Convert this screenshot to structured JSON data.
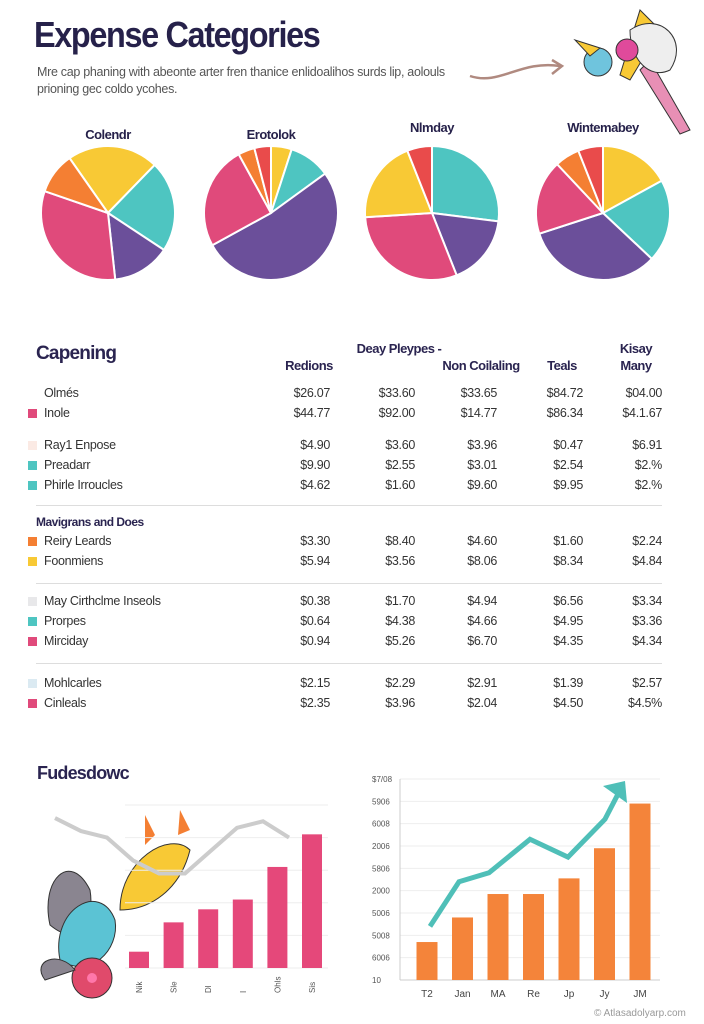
{
  "header": {
    "title": "Expense Categories",
    "subtitle": "Mre cap phaning with abeonte arter fren thanice enlidoalihos surds lip, aolouls prioning gec coldo ycohes."
  },
  "colors": {
    "pink": "#e04a7b",
    "purple": "#6b4f9a",
    "teal": "#4ec5c1",
    "yellow": "#f8c935",
    "orange": "#f47f33",
    "red": "#e94b4b",
    "navy": "#26214a",
    "bar_pink": "#e5487a",
    "bar_orange": "#f4843a",
    "line_teal": "#4fbfb8"
  },
  "chart_data": [
    {
      "type": "pie",
      "title": "Colendr",
      "slices": [
        {
          "color": "yellow",
          "value": 22
        },
        {
          "color": "teal",
          "value": 22
        },
        {
          "color": "purple",
          "value": 14
        },
        {
          "color": "pink",
          "value": 32
        },
        {
          "color": "orange",
          "value": 10
        }
      ]
    },
    {
      "type": "pie",
      "title": "Erotolok",
      "slices": [
        {
          "color": "yellow",
          "value": 5
        },
        {
          "color": "teal",
          "value": 10
        },
        {
          "color": "purple",
          "value": 52
        },
        {
          "color": "pink",
          "value": 25
        },
        {
          "color": "orange",
          "value": 4
        },
        {
          "color": "red",
          "value": 4
        }
      ]
    },
    {
      "type": "pie",
      "title": "Nlmday",
      "slices": [
        {
          "color": "teal",
          "value": 27
        },
        {
          "color": "purple",
          "value": 17
        },
        {
          "color": "pink",
          "value": 30
        },
        {
          "color": "yellow",
          "value": 20
        },
        {
          "color": "red",
          "value": 6
        }
      ]
    },
    {
      "type": "pie",
      "title": "Wintemabey",
      "slices": [
        {
          "color": "yellow",
          "value": 17
        },
        {
          "color": "teal",
          "value": 20
        },
        {
          "color": "purple",
          "value": 33
        },
        {
          "color": "pink",
          "value": 18
        },
        {
          "color": "orange",
          "value": 6
        },
        {
          "color": "red",
          "value": 6
        }
      ]
    },
    {
      "type": "table",
      "title": "Capening",
      "columns": [
        "Redions",
        "Deay Pleypes -",
        "Non Coilaling",
        "Teals",
        "Kisay Many"
      ],
      "groups": [
        {
          "rows": [
            {
              "label": "Olmés",
              "swatch": null,
              "values": [
                "$26.07",
                "$33.60",
                "$33.65",
                "$84.72",
                "$04.00"
              ]
            },
            {
              "label": "Inole",
              "swatch": "#e04a7b",
              "values": [
                "$44.77",
                "$92.00",
                "$14.77",
                "$86.34",
                "$4.1.67"
              ]
            },
            {
              "label": "Ray1 Enpose",
              "swatch": "#fbeae4",
              "values": [
                "$4.90",
                "$3.60",
                "$3.96",
                "$0.47",
                "$6.91"
              ]
            },
            {
              "label": "Preadarr",
              "swatch": "#4ec5c1",
              "values": [
                "$9.90",
                "$2.55",
                "$3.01",
                "$2.54",
                "$2.%"
              ]
            },
            {
              "label": "Phirle Irroucles",
              "swatch": "#4ec5c1",
              "values": [
                "$4.62",
                "$1.60",
                "$9.60",
                "$9.95",
                "$2.%"
              ]
            }
          ]
        },
        {
          "heading": "Mavigrans and Does",
          "rows": [
            {
              "label": "Reiry Leards",
              "swatch": "#f47f33",
              "values": [
                "$3.30",
                "$8.40",
                "$4.60",
                "$1.60",
                "$2.24"
              ]
            },
            {
              "label": "Foonmiens",
              "swatch": "#f8c935",
              "values": [
                "$5.94",
                "$3.56",
                "$8.06",
                "$8.34",
                "$4.84"
              ]
            }
          ]
        },
        {
          "rows": [
            {
              "label": "May Cirthclme Inseols",
              "swatch": "#e8e8ea",
              "values": [
                "$0.38",
                "$1.70",
                "$4.94",
                "$6.56",
                "$3.34"
              ]
            },
            {
              "label": "Prorpes",
              "swatch": "#4ec5c1",
              "values": [
                "$0.64",
                "$4.38",
                "$4.66",
                "$4.95",
                "$3.36"
              ]
            },
            {
              "label": "Mirciday",
              "swatch": "#e04a7b",
              "values": [
                "$0.94",
                "$5.26",
                "$6.70",
                "$4.35",
                "$4.34"
              ]
            }
          ]
        },
        {
          "rows": [
            {
              "label": "Mohlcarles",
              "swatch": "#dbeaf2",
              "values": [
                "$2.15",
                "$2.29",
                "$2.91",
                "$1.39",
                "$2.57"
              ]
            },
            {
              "label": "Cinleals",
              "swatch": "#e04a7b",
              "values": [
                "$2.35",
                "$3.96",
                "$2.04",
                "$4.50",
                "$4.5%"
              ]
            }
          ]
        }
      ]
    },
    {
      "type": "bar",
      "title": "Fudesdowc",
      "categories": [
        "Nik",
        "Sle",
        "Dl",
        "I",
        "Ohls",
        "Sis"
      ],
      "values": [
        0.5,
        1.4,
        1.8,
        2.1,
        3.1,
        4.1
      ],
      "ylim": [
        0,
        5
      ],
      "grid": true,
      "trend_line": [
        4.6,
        4.2,
        4.0,
        3.3,
        2.9,
        2.9,
        3.6,
        4.3,
        4.5,
        4.0
      ]
    },
    {
      "type": "bar",
      "categories": [
        "T2",
        "Jan",
        "MA",
        "Re",
        "Jp",
        "Jy",
        "JM"
      ],
      "values": [
        1.7,
        2.8,
        3.85,
        3.85,
        4.55,
        5.9,
        7.9
      ],
      "line": [
        2.4,
        4.4,
        4.8,
        6.3,
        5.5,
        7.2,
        8.5
      ],
      "ylim": [
        0,
        9
      ],
      "grid": true,
      "y_tick_labels": [
        "10",
        "6006",
        "5008",
        "5006",
        "2000",
        "5806",
        "2006",
        "6008",
        "5906",
        "$7/08"
      ],
      "credit": "© Atlasadolyarp.com"
    }
  ]
}
